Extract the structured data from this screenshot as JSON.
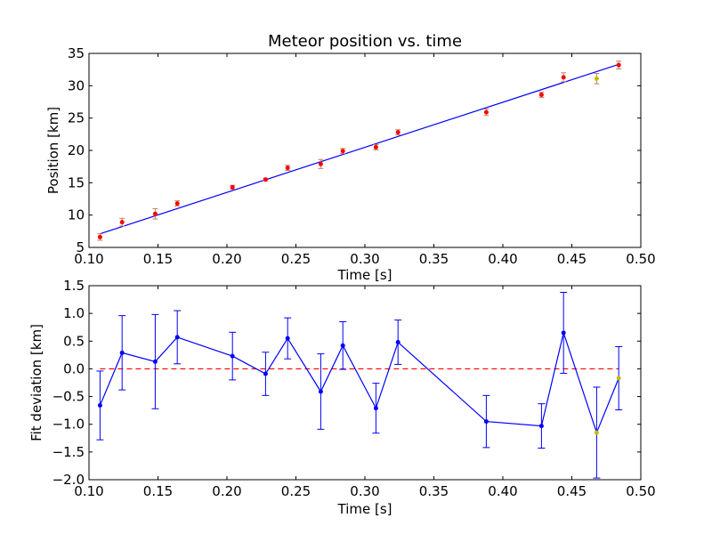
{
  "chart_data": [
    {
      "type": "scatter",
      "title": "Meteor position vs. time",
      "xlabel": "Time [s]",
      "ylabel": "Position [km]",
      "xlim": [
        0.1,
        0.5
      ],
      "ylim": [
        5,
        35
      ],
      "xticks": [
        "0.10",
        "0.15",
        "0.20",
        "0.25",
        "0.30",
        "0.35",
        "0.40",
        "0.45",
        "0.50"
      ],
      "yticks": [
        "5",
        "10",
        "15",
        "20",
        "25",
        "30",
        "35"
      ],
      "grid": false,
      "colors": {
        "points": "#ff0000",
        "highlight": "#bfbf00",
        "fit": "#0000ff",
        "errorbar": "#c08060"
      },
      "fit_line": {
        "x": [
          0.108,
          0.484
        ],
        "y": [
          7.1,
          33.3
        ]
      },
      "points": [
        {
          "x": 0.108,
          "y": 6.6,
          "err": 0.5
        },
        {
          "x": 0.124,
          "y": 8.9,
          "err": 0.6
        },
        {
          "x": 0.148,
          "y": 10.2,
          "err": 0.8
        },
        {
          "x": 0.164,
          "y": 11.8,
          "err": 0.4
        },
        {
          "x": 0.204,
          "y": 14.3,
          "err": 0.3
        },
        {
          "x": 0.228,
          "y": 15.5,
          "err": 0.2
        },
        {
          "x": 0.244,
          "y": 17.3,
          "err": 0.4
        },
        {
          "x": 0.268,
          "y": 17.9,
          "err": 0.7
        },
        {
          "x": 0.284,
          "y": 19.9,
          "err": 0.4
        },
        {
          "x": 0.308,
          "y": 20.5,
          "err": 0.4
        },
        {
          "x": 0.324,
          "y": 22.8,
          "err": 0.4
        },
        {
          "x": 0.388,
          "y": 25.9,
          "err": 0.5
        },
        {
          "x": 0.428,
          "y": 28.6,
          "err": 0.4
        },
        {
          "x": 0.444,
          "y": 31.3,
          "err": 0.7
        },
        {
          "x": 0.468,
          "y": 31.1,
          "err": 0.8,
          "highlight": true
        },
        {
          "x": 0.484,
          "y": 33.2,
          "err": 0.6
        }
      ]
    },
    {
      "type": "line",
      "title": "",
      "xlabel": "Time [s]",
      "ylabel": "Fit deviation [km]",
      "xlim": [
        0.1,
        0.5
      ],
      "ylim": [
        -2.0,
        1.5
      ],
      "xticks": [
        "0.10",
        "0.15",
        "0.20",
        "0.25",
        "0.30",
        "0.35",
        "0.40",
        "0.45",
        "0.50"
      ],
      "yticks": [
        "−2.0",
        "−1.5",
        "−1.0",
        "−0.5",
        "0.0",
        "0.5",
        "1.0",
        "1.5"
      ],
      "grid": false,
      "colors": {
        "line": "#0000ff",
        "highlight": "#bfbf00",
        "zero_line": "#ff0000"
      },
      "zero_line": {
        "y": 0.0,
        "x": [
          0.108,
          0.484
        ]
      },
      "points": [
        {
          "x": 0.108,
          "y": -0.66,
          "err": 0.62
        },
        {
          "x": 0.124,
          "y": 0.29,
          "err": 0.67
        },
        {
          "x": 0.148,
          "y": 0.13,
          "err": 0.85
        },
        {
          "x": 0.164,
          "y": 0.57,
          "err": 0.48
        },
        {
          "x": 0.204,
          "y": 0.23,
          "err": 0.43
        },
        {
          "x": 0.228,
          "y": -0.09,
          "err": 0.39
        },
        {
          "x": 0.244,
          "y": 0.55,
          "err": 0.37
        },
        {
          "x": 0.268,
          "y": -0.41,
          "err": 0.68
        },
        {
          "x": 0.284,
          "y": 0.42,
          "err": 0.43
        },
        {
          "x": 0.308,
          "y": -0.71,
          "err": 0.45
        },
        {
          "x": 0.324,
          "y": 0.48,
          "err": 0.4
        },
        {
          "x": 0.388,
          "y": -0.95,
          "err": 0.47
        },
        {
          "x": 0.428,
          "y": -1.03,
          "err": 0.4
        },
        {
          "x": 0.444,
          "y": 0.65,
          "err": 0.73
        },
        {
          "x": 0.468,
          "y": -1.15,
          "err": 0.82,
          "highlight": true
        },
        {
          "x": 0.484,
          "y": -0.17,
          "err": 0.57,
          "highlight": true
        }
      ]
    }
  ]
}
